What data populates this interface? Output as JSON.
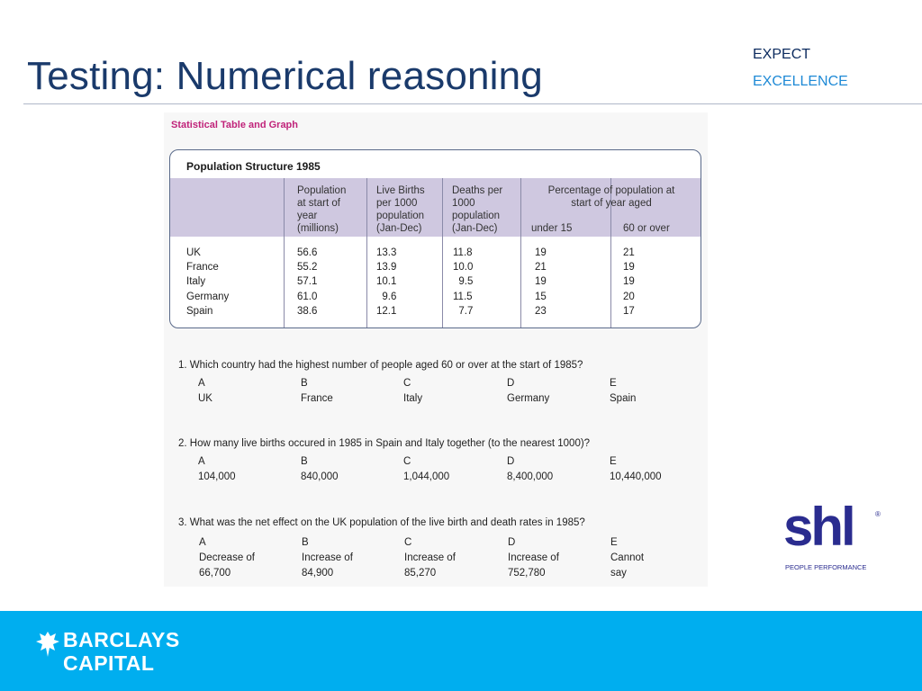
{
  "slide": {
    "title": "Testing: Numerical reasoning"
  },
  "tagline": {
    "line1": "EXPECT",
    "line2": "EXCELLENCE"
  },
  "sheet": {
    "heading": "Statistical Table and Graph",
    "table": {
      "title": "Population Structure 1985",
      "headers": {
        "population": [
          "Population",
          "at start of",
          "year",
          "(millions)"
        ],
        "births": [
          "Live Births",
          "per 1000",
          "population",
          "(Jan-Dec)"
        ],
        "deaths": [
          "Deaths per",
          "1000",
          "population",
          "(Jan-Dec)"
        ],
        "percentage": [
          "Percentage of population at",
          "start of year aged"
        ],
        "under15": "under 15",
        "over60": "60 or over"
      },
      "countries": [
        "UK",
        "France",
        "Italy",
        "Germany",
        "Spain"
      ],
      "population": [
        "56.6",
        "55.2",
        "57.1",
        "61.0",
        "38.6"
      ],
      "births": [
        "13.3",
        "13.9",
        "10.1",
        "  9.6",
        "12.1"
      ],
      "deaths": [
        "11.8",
        "10.0",
        "  9.5",
        "11.5",
        "  7.7"
      ],
      "under15": [
        "19",
        "21",
        "19",
        "15",
        "23"
      ],
      "over60": [
        "21",
        "19",
        "19",
        "20",
        "17"
      ]
    },
    "questions": [
      {
        "text": "1.   Which country had the highest number of people aged 60 or over at the start of 1985?",
        "options": [
          {
            "letter": "A",
            "lines": [
              "UK"
            ]
          },
          {
            "letter": "B",
            "lines": [
              "France"
            ]
          },
          {
            "letter": "C",
            "lines": [
              "Italy"
            ]
          },
          {
            "letter": "D",
            "lines": [
              "Germany"
            ]
          },
          {
            "letter": "E",
            "lines": [
              "Spain"
            ]
          }
        ]
      },
      {
        "text": "2.   How many live births occured in 1985 in Spain and Italy together (to the nearest 1000)?",
        "options": [
          {
            "letter": "A",
            "lines": [
              "104,000"
            ]
          },
          {
            "letter": "B",
            "lines": [
              "840,000"
            ]
          },
          {
            "letter": "C",
            "lines": [
              "1,044,000"
            ]
          },
          {
            "letter": "D",
            "lines": [
              "8,400,000"
            ]
          },
          {
            "letter": "E",
            "lines": [
              "10,440,000"
            ]
          }
        ]
      },
      {
        "text": "3.   What was the net effect on the UK population of the live birth and death rates in 1985?",
        "options": [
          {
            "letter": "A",
            "lines": [
              "Decrease of",
              "66,700"
            ]
          },
          {
            "letter": "B",
            "lines": [
              "Increase of",
              "84,900"
            ]
          },
          {
            "letter": "C",
            "lines": [
              "Increase of",
              "85,270"
            ]
          },
          {
            "letter": "D",
            "lines": [
              "Increase of",
              "752,780"
            ]
          },
          {
            "letter": "E",
            "lines": [
              "Cannot",
              "say"
            ]
          }
        ]
      }
    ]
  },
  "logos": {
    "shl": {
      "word": "shl",
      "reg": "®",
      "tagline": "PEOPLE PERFORMANCE"
    },
    "barclays": {
      "line1": "BARCLAYS",
      "line2": "CAPITAL",
      "icon": "eagle-icon"
    }
  },
  "colors": {
    "title": "#1a3a6b",
    "expect": "#0b2a5e",
    "excellence": "#1f8ad6",
    "footer": "#00aeef",
    "sheet_heading": "#c0237a",
    "header_band": "#cfc8e0",
    "shl": "#2a2c8f"
  }
}
